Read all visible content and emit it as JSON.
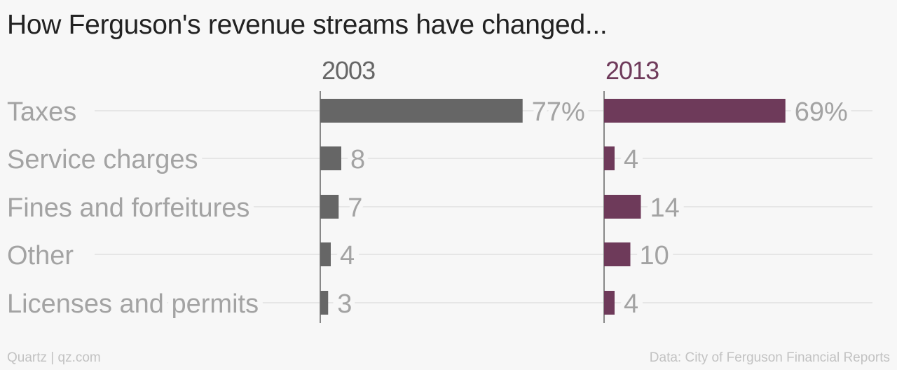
{
  "title": "How Ferguson's revenue streams have changed...",
  "footer": {
    "source": "Quartz | qz.com",
    "credit": "Data: City of Ferguson Financial Reports"
  },
  "colors": {
    "series_2003": "#666666",
    "series_2013": "#6e3a5a",
    "category_label": "#a3a3a3",
    "value_label": "#a3a3a3",
    "header_2003": "#666666",
    "header_2013": "#6e3a5a",
    "gridline": "#e6e6e6",
    "axis": "#888888"
  },
  "chart_data": {
    "type": "bar",
    "orientation": "horizontal",
    "layout": "small-multiples",
    "categories": [
      "Taxes",
      "Service charges",
      "Fines and forfeitures",
      "Other",
      "Licenses and permits"
    ],
    "series": [
      {
        "name": "2003",
        "values": [
          77,
          8,
          7,
          4,
          3
        ],
        "labels": [
          "77%",
          "8",
          "7",
          "4",
          "3"
        ]
      },
      {
        "name": "2013",
        "values": [
          69,
          4,
          14,
          10,
          4
        ],
        "labels": [
          "69%",
          "4",
          "14",
          "10",
          "4"
        ]
      }
    ],
    "unit": "%",
    "xlim": [
      0,
      100
    ],
    "grid": true
  }
}
